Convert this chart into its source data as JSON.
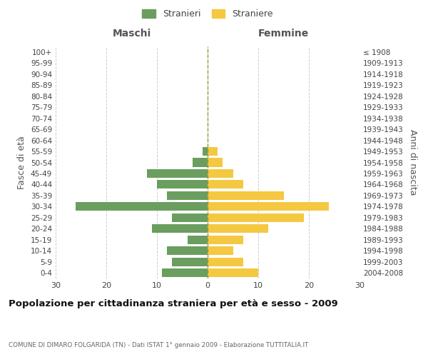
{
  "age_groups_bottom_to_top": [
    "0-4",
    "5-9",
    "10-14",
    "15-19",
    "20-24",
    "25-29",
    "30-34",
    "35-39",
    "40-44",
    "45-49",
    "50-54",
    "55-59",
    "60-64",
    "65-69",
    "70-74",
    "75-79",
    "80-84",
    "85-89",
    "90-94",
    "95-99",
    "100+"
  ],
  "birth_years_bottom_to_top": [
    "2004-2008",
    "1999-2003",
    "1994-1998",
    "1989-1993",
    "1984-1988",
    "1979-1983",
    "1974-1978",
    "1969-1973",
    "1964-1968",
    "1959-1963",
    "1954-1958",
    "1949-1953",
    "1944-1948",
    "1939-1943",
    "1934-1938",
    "1929-1933",
    "1924-1928",
    "1919-1923",
    "1914-1918",
    "1909-1913",
    "≤ 1908"
  ],
  "maschi_bottom_to_top": [
    9,
    7,
    8,
    4,
    11,
    7,
    26,
    8,
    10,
    12,
    3,
    1,
    0,
    0,
    0,
    0,
    0,
    0,
    0,
    0,
    0
  ],
  "femmine_bottom_to_top": [
    10,
    7,
    5,
    7,
    12,
    19,
    24,
    15,
    7,
    5,
    3,
    2,
    0,
    0,
    0,
    0,
    0,
    0,
    0,
    0,
    0
  ],
  "maschi_color": "#6a9e5f",
  "femmine_color": "#f5c842",
  "bg_color": "#ffffff",
  "grid_color": "#cccccc",
  "center_line_color": "#999933",
  "title": "Popolazione per cittadinanza straniera per età e sesso - 2009",
  "subtitle": "COMUNE DI DIMARO FOLGARIDA (TN) - Dati ISTAT 1° gennaio 2009 - Elaborazione TUTTITALIA.IT",
  "label_maschi": "Maschi",
  "label_femmine": "Femmine",
  "ylabel_left": "Fasce di età",
  "ylabel_right": "Anni di nascita",
  "legend_m": "Stranieri",
  "legend_f": "Straniere",
  "xlim": 30,
  "xtick_labels": [
    "30",
    "20",
    "10",
    "0",
    "10",
    "20",
    "30"
  ]
}
